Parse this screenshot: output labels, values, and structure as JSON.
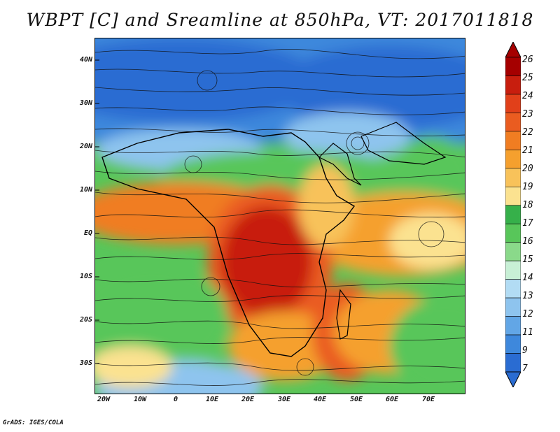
{
  "title": "WBPT [C] and Sreamline at 850hPa, VT: 2017011818",
  "credit": "GrADS: IGES/COLA",
  "map": {
    "lat_labels": [
      "40N",
      "30N",
      "20N",
      "10N",
      "EQ",
      "10S",
      "20S",
      "30S"
    ],
    "lon_labels": [
      "20W",
      "10W",
      "0",
      "10E",
      "20E",
      "30E",
      "40E",
      "50E",
      "60E",
      "70E"
    ]
  },
  "colorbar": {
    "labels": [
      "26",
      "25",
      "24",
      "23",
      "22",
      "21",
      "20",
      "19",
      "18",
      "17",
      "16",
      "15",
      "14",
      "13",
      "12",
      "11",
      "9",
      "7"
    ],
    "colors": [
      "#a50000",
      "#c81e0e",
      "#e1401a",
      "#ea5c20",
      "#f07d22",
      "#f5a02e",
      "#f8c25a",
      "#fbe290",
      "#36b04a",
      "#58c65a",
      "#8ad98a",
      "#c8f0d6",
      "#b2dcf4",
      "#8ec4ee",
      "#62a6e6",
      "#3e88dc",
      "#2a6cd2"
    ]
  }
}
